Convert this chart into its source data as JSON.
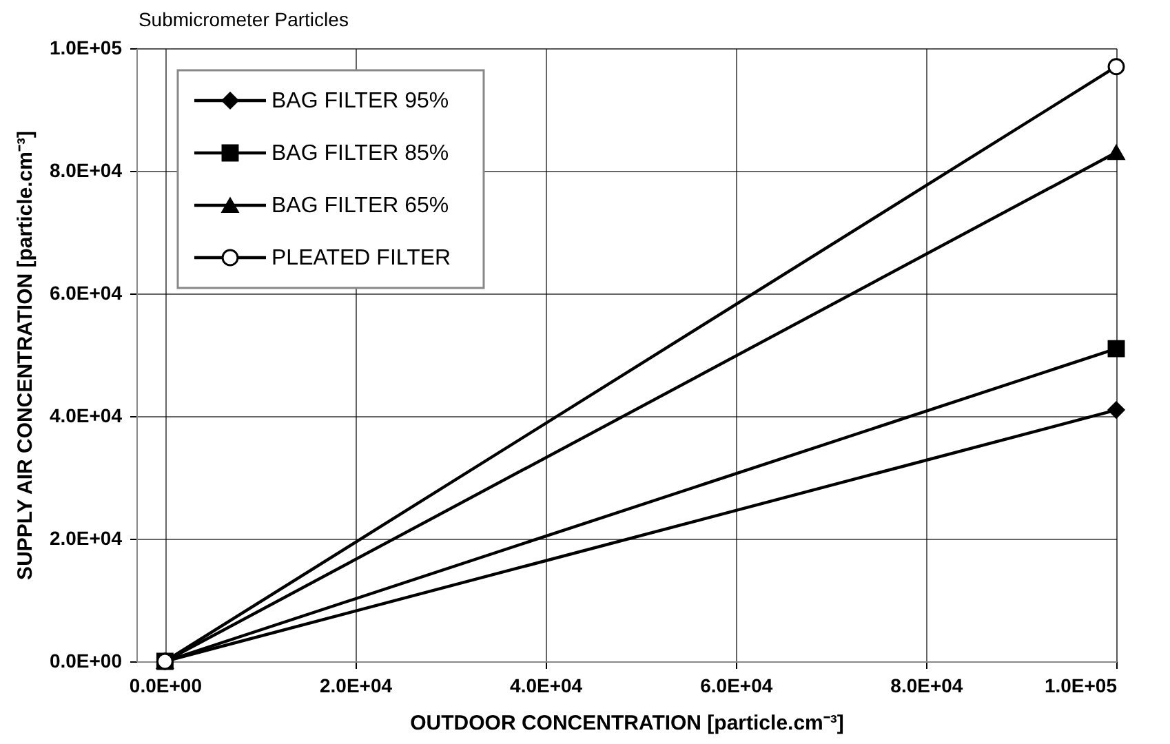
{
  "chart_data": {
    "type": "line",
    "title": "Submicrometer Particles",
    "xlabel": "OUTDOOR CONCENTRATION [particle.cm⁻³]",
    "ylabel": "SUPPLY AIR CONCENTRATION [particle.cm⁻³]",
    "x": [
      0,
      100000
    ],
    "series": [
      {
        "name": "BAG  FILTER 95%",
        "color": "#000000",
        "marker": "diamond",
        "values": [
          0,
          41000
        ]
      },
      {
        "name": "BAG  FILTER 85%",
        "color": "#000000",
        "marker": "square",
        "values": [
          0,
          51000
        ]
      },
      {
        "name": "BAG  FILTER 65%",
        "color": "#000000",
        "marker": "triangle",
        "values": [
          0,
          83000
        ]
      },
      {
        "name": "PLEATED FILTER",
        "color": "#000000",
        "marker": "circle",
        "values": [
          0,
          97000
        ]
      }
    ],
    "xlim": [
      -3000,
      100000
    ],
    "xticks": [
      {
        "value": 0,
        "label": "0.0E+00"
      },
      {
        "value": 20000,
        "label": "2.0E+04"
      },
      {
        "value": 40000,
        "label": "4.0E+04"
      },
      {
        "value": 60000,
        "label": "6.0E+04"
      },
      {
        "value": 80000,
        "label": "8.0E+04"
      },
      {
        "value": 100000,
        "label": "1.0E+05"
      }
    ],
    "ylim": [
      0,
      100000
    ],
    "yticks": [
      {
        "value": 0,
        "label": "0.0E+00"
      },
      {
        "value": 20000,
        "label": "2.0E+04"
      },
      {
        "value": 40000,
        "label": "4.0E+04"
      },
      {
        "value": 60000,
        "label": "6.0E+04"
      },
      {
        "value": 80000,
        "label": "8.0E+04"
      },
      {
        "value": 100000,
        "label": "1.0E+05"
      }
    ],
    "grid": true,
    "legend": "top left",
    "line_style": "solid"
  }
}
